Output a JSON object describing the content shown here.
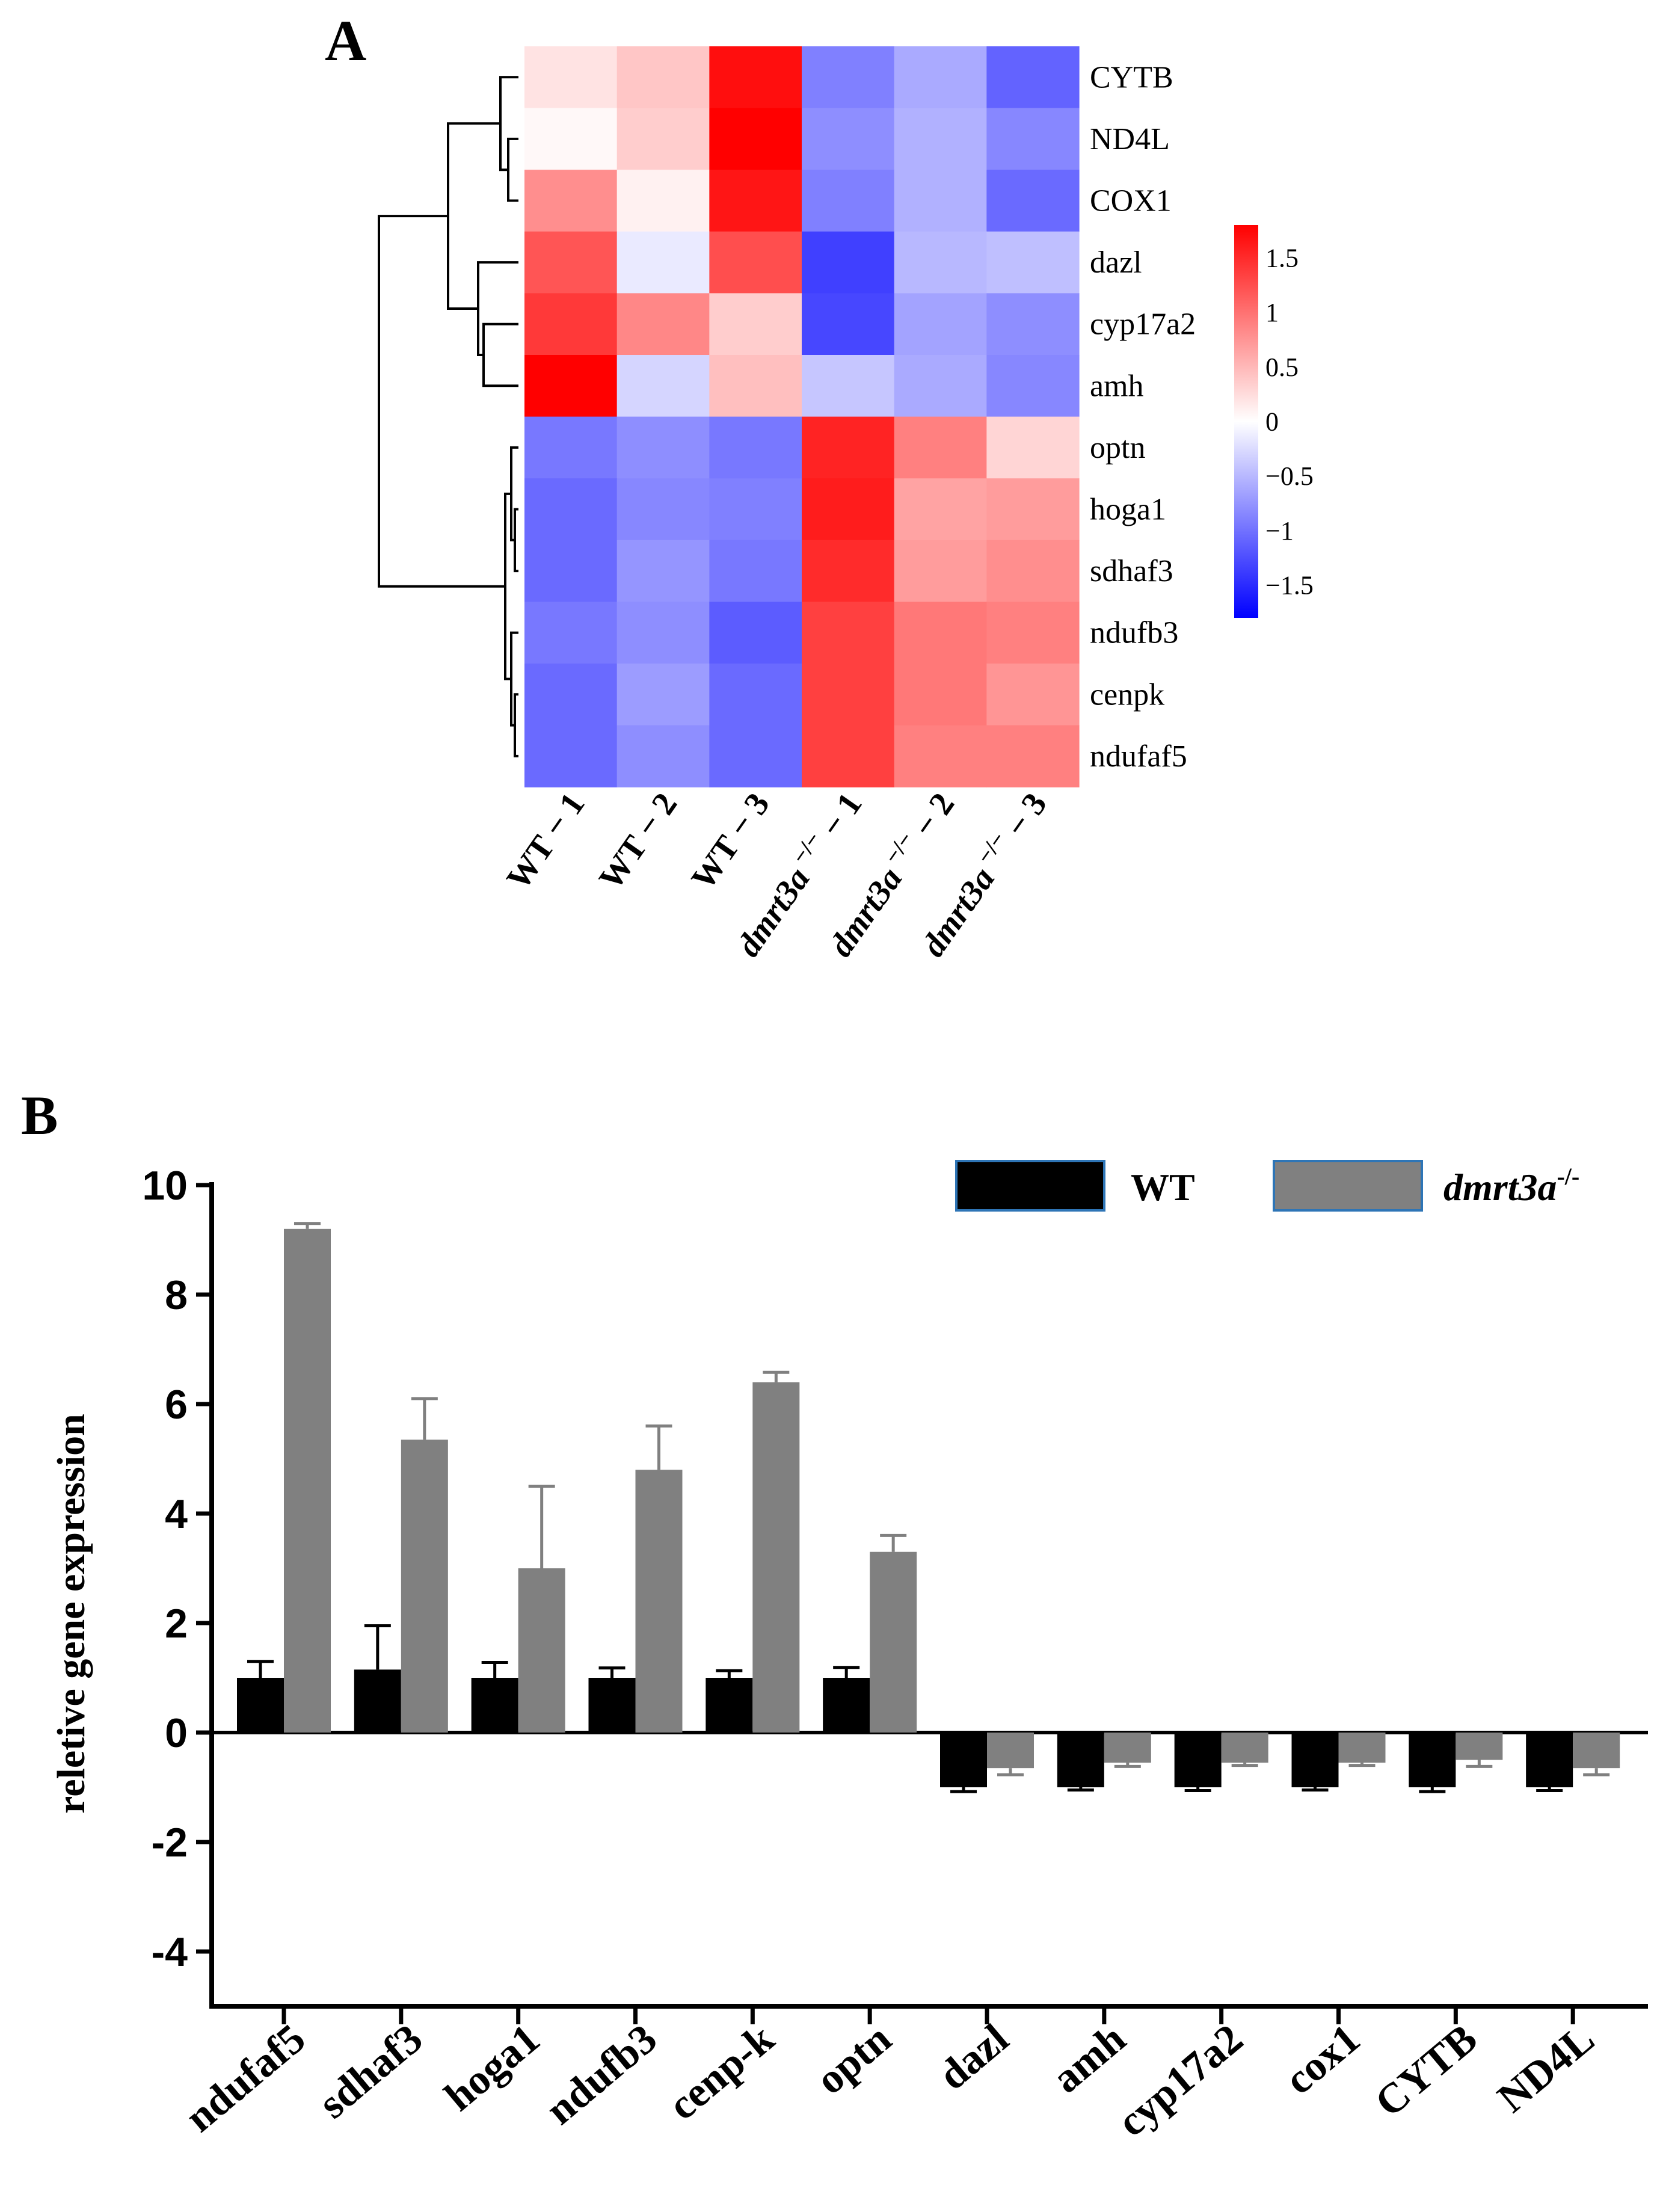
{
  "panel_a": {
    "label": "A",
    "chart_data": {
      "type": "heatmap",
      "title": "",
      "rows": [
        "CYTB",
        "ND4L",
        "COX1",
        "dazl",
        "cyp17a2",
        "amh",
        "optn",
        "hoga1",
        "sdhaf3",
        "ndufb3",
        "cenpk",
        "ndufaf5"
      ],
      "columns": [
        {
          "base": "WT",
          "sup": "",
          "rep": "1"
        },
        {
          "base": "WT",
          "sup": "",
          "rep": "2"
        },
        {
          "base": "WT",
          "sup": "",
          "rep": "3"
        },
        {
          "base": "dmrt3a",
          "sup": "−/−",
          "rep": "1"
        },
        {
          "base": "dmrt3a",
          "sup": "−/−",
          "rep": "2"
        },
        {
          "base": "dmrt3a",
          "sup": "−/−",
          "rep": "3"
        }
      ],
      "values": [
        [
          0.2,
          0.4,
          1.7,
          -0.9,
          -0.6,
          -1.1
        ],
        [
          0.05,
          0.35,
          1.8,
          -0.8,
          -0.55,
          -0.85
        ],
        [
          0.8,
          0.1,
          1.65,
          -0.9,
          -0.55,
          -1.05
        ],
        [
          1.2,
          -0.15,
          1.25,
          -1.35,
          -0.5,
          -0.45
        ],
        [
          1.4,
          0.85,
          0.35,
          -1.3,
          -0.65,
          -0.8
        ],
        [
          1.8,
          -0.3,
          0.45,
          -0.4,
          -0.6,
          -0.85
        ],
        [
          -0.95,
          -0.8,
          -0.95,
          1.55,
          0.9,
          0.3
        ],
        [
          -1.05,
          -0.85,
          -0.9,
          1.6,
          0.65,
          0.7
        ],
        [
          -1.05,
          -0.75,
          -0.95,
          1.5,
          0.7,
          0.8
        ],
        [
          -0.95,
          -0.8,
          -1.15,
          1.35,
          0.95,
          0.9
        ],
        [
          -1.05,
          -0.7,
          -1.05,
          1.35,
          0.95,
          0.75
        ],
        [
          -1.05,
          -0.8,
          -1.05,
          1.35,
          0.9,
          0.9
        ]
      ],
      "colorbar": {
        "min": -1.8,
        "max": 1.8,
        "ticks": [
          {
            "value": 1.5,
            "label": "1.5"
          },
          {
            "value": 1,
            "label": "1"
          },
          {
            "value": 0.5,
            "label": "0.5"
          },
          {
            "value": 0,
            "label": "0"
          },
          {
            "value": -0.5,
            "label": "−0.5"
          },
          {
            "value": -1,
            "label": "−1"
          },
          {
            "value": -1.5,
            "label": "−1.5"
          }
        ],
        "low_color": "#0000ff",
        "mid_color": "#ffffff",
        "high_color": "#ff0000"
      },
      "dendrogram": "hierarchical clustering of rows"
    }
  },
  "panel_b": {
    "label": "B",
    "chart_data": {
      "type": "bar",
      "title": "",
      "xlabel": "",
      "ylabel": "reletive gene expression",
      "ylim": [
        -5,
        10
      ],
      "yticks": [
        10,
        8,
        6,
        4,
        2,
        0,
        -2,
        -4
      ],
      "categories": [
        "ndufaf5",
        "sdhaf3",
        "hoga1",
        "ndufb3",
        "cenp-k",
        "optn",
        "dazl",
        "amh",
        "cyp17a2",
        "cox1",
        "CYTB",
        "ND4L"
      ],
      "series": [
        {
          "name": "WT",
          "name_sup": "",
          "color": "#000000",
          "values": [
            1.0,
            1.15,
            1.0,
            1.0,
            1.0,
            1.0,
            -1.0,
            -1.0,
            -1.0,
            -1.0,
            -1.0,
            -1.0
          ],
          "errors": [
            0.3,
            0.8,
            0.28,
            0.18,
            0.13,
            0.19,
            0.08,
            0.05,
            0.06,
            0.05,
            0.08,
            0.06
          ]
        },
        {
          "name": "dmrt3a",
          "name_sup": "-/-",
          "color": "#808080",
          "values": [
            9.2,
            5.35,
            3.0,
            4.8,
            6.4,
            3.3,
            -0.65,
            -0.55,
            -0.55,
            -0.55,
            -0.5,
            -0.65
          ],
          "errors": [
            0.1,
            0.75,
            1.5,
            0.8,
            0.18,
            0.3,
            0.12,
            0.07,
            0.05,
            0.05,
            0.12,
            0.12
          ]
        }
      ],
      "legend_position": "top-right"
    }
  }
}
